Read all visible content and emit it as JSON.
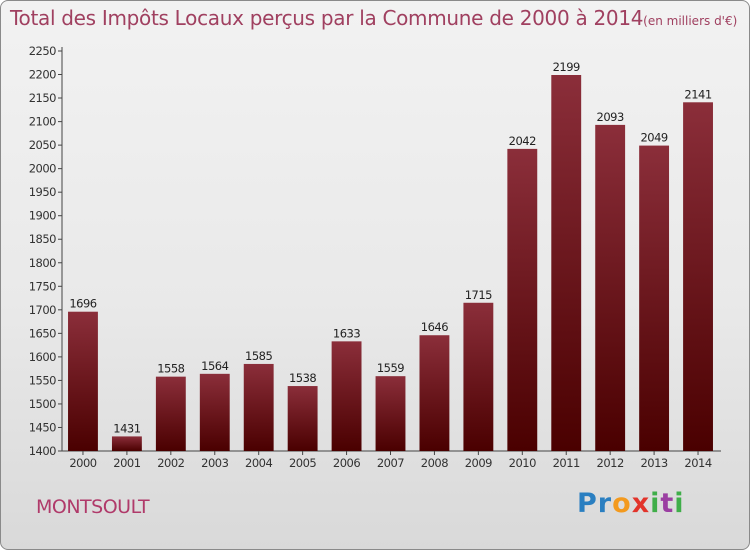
{
  "title": "Total des Impôts Locaux perçus par la Commune de 2000 à 2014",
  "unit_label": "(en milliers d'€)",
  "commune": "MONTSOULT",
  "logo_text": "Proxiti",
  "colors": {
    "bar_top": "#8b2e3a",
    "bar_bottom": "#4a0000",
    "title": "#a04060",
    "commune": "#b03a6a"
  },
  "chart_data": {
    "type": "bar",
    "title": "Total des Impôts Locaux perçus par la Commune de 2000 à 2014",
    "subtitle": "(en milliers d'€)",
    "xlabel": "",
    "ylabel": "",
    "categories": [
      "2000",
      "2001",
      "2002",
      "2003",
      "2004",
      "2005",
      "2006",
      "2007",
      "2008",
      "2009",
      "2010",
      "2011",
      "2012",
      "2013",
      "2014"
    ],
    "values": [
      1696,
      1431,
      1558,
      1564,
      1585,
      1538,
      1633,
      1559,
      1646,
      1715,
      2042,
      2199,
      2093,
      2049,
      2141
    ],
    "ylim": [
      1400,
      2250
    ],
    "yticks": [
      1400,
      1450,
      1500,
      1550,
      1600,
      1650,
      1700,
      1750,
      1800,
      1850,
      1900,
      1950,
      2000,
      2050,
      2100,
      2150,
      2200,
      2250
    ],
    "grid": false,
    "legend": "none"
  }
}
